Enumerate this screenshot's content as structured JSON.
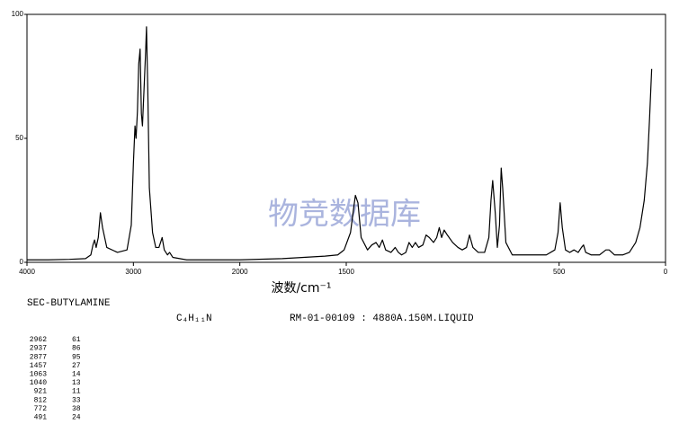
{
  "chart_data": {
    "type": "line",
    "title": "SEC-BUTYLAMINE",
    "formula": "C₄H₁₁N",
    "subtitle": "RM-01-00109 : 4880A.150M.LIQUID",
    "xlabel": "波数/cm⁻¹",
    "watermark": "物竞数据库",
    "xlim": [
      4000,
      0
    ],
    "xbreak": 2000,
    "xticks": [
      4000,
      3000,
      2000,
      1500,
      500,
      0
    ],
    "ylim": [
      0,
      100
    ],
    "yticks": [
      0,
      50,
      100
    ],
    "x": [
      4000,
      3800,
      3600,
      3450,
      3400,
      3380,
      3365,
      3350,
      3330,
      3310,
      3290,
      3250,
      3150,
      3060,
      3020,
      3000,
      2985,
      2975,
      2962,
      2950,
      2937,
      2925,
      2915,
      2900,
      2885,
      2877,
      2865,
      2850,
      2820,
      2790,
      2760,
      2730,
      2710,
      2680,
      2660,
      2630,
      2500,
      2200,
      2000,
      1800,
      1700,
      1600,
      1540,
      1510,
      1480,
      1465,
      1457,
      1445,
      1430,
      1400,
      1380,
      1360,
      1345,
      1330,
      1315,
      1290,
      1270,
      1255,
      1240,
      1220,
      1205,
      1190,
      1175,
      1160,
      1140,
      1125,
      1110,
      1090,
      1075,
      1063,
      1052,
      1040,
      1025,
      1000,
      975,
      955,
      935,
      921,
      905,
      880,
      850,
      830,
      820,
      812,
      800,
      790,
      780,
      772,
      765,
      750,
      720,
      650,
      560,
      520,
      505,
      495,
      485,
      470,
      450,
      430,
      410,
      395,
      385,
      375,
      350,
      310,
      280,
      265,
      240,
      200,
      170,
      140,
      120,
      100,
      85,
      75,
      65
    ],
    "series": [
      {
        "color": "#000000",
        "values": [
          1,
          1,
          1.2,
          1.5,
          3,
          7,
          9,
          6,
          10,
          20,
          14,
          6,
          4,
          5,
          15,
          40,
          55,
          50,
          61,
          80,
          86,
          60,
          55,
          70,
          85,
          95,
          70,
          30,
          12,
          6,
          6,
          10,
          5,
          3,
          4,
          2,
          1,
          1,
          1,
          1.5,
          2,
          2.5,
          3,
          5,
          12,
          22,
          27,
          24,
          10,
          5,
          7,
          8,
          6,
          9,
          5,
          4,
          6,
          4,
          3,
          4,
          8,
          6,
          8,
          6,
          7,
          11,
          10,
          8,
          10,
          14,
          10,
          13,
          11,
          8,
          6,
          5,
          6,
          11,
          6,
          4,
          4,
          10,
          25,
          33,
          20,
          6,
          15,
          38,
          30,
          8,
          3,
          3,
          3,
          5,
          12,
          24,
          14,
          5,
          4,
          5,
          4,
          6,
          7,
          4,
          3,
          3,
          5,
          5,
          3,
          3,
          4,
          8,
          14,
          25,
          40,
          58,
          78
        ]
      }
    ],
    "peaks": {
      "wavenumbers": [
        2962,
        2937,
        2877,
        1457,
        1063,
        1040,
        921,
        812,
        772,
        491
      ],
      "intensities": [
        61,
        86,
        95,
        27,
        14,
        13,
        11,
        33,
        38,
        24
      ]
    }
  }
}
